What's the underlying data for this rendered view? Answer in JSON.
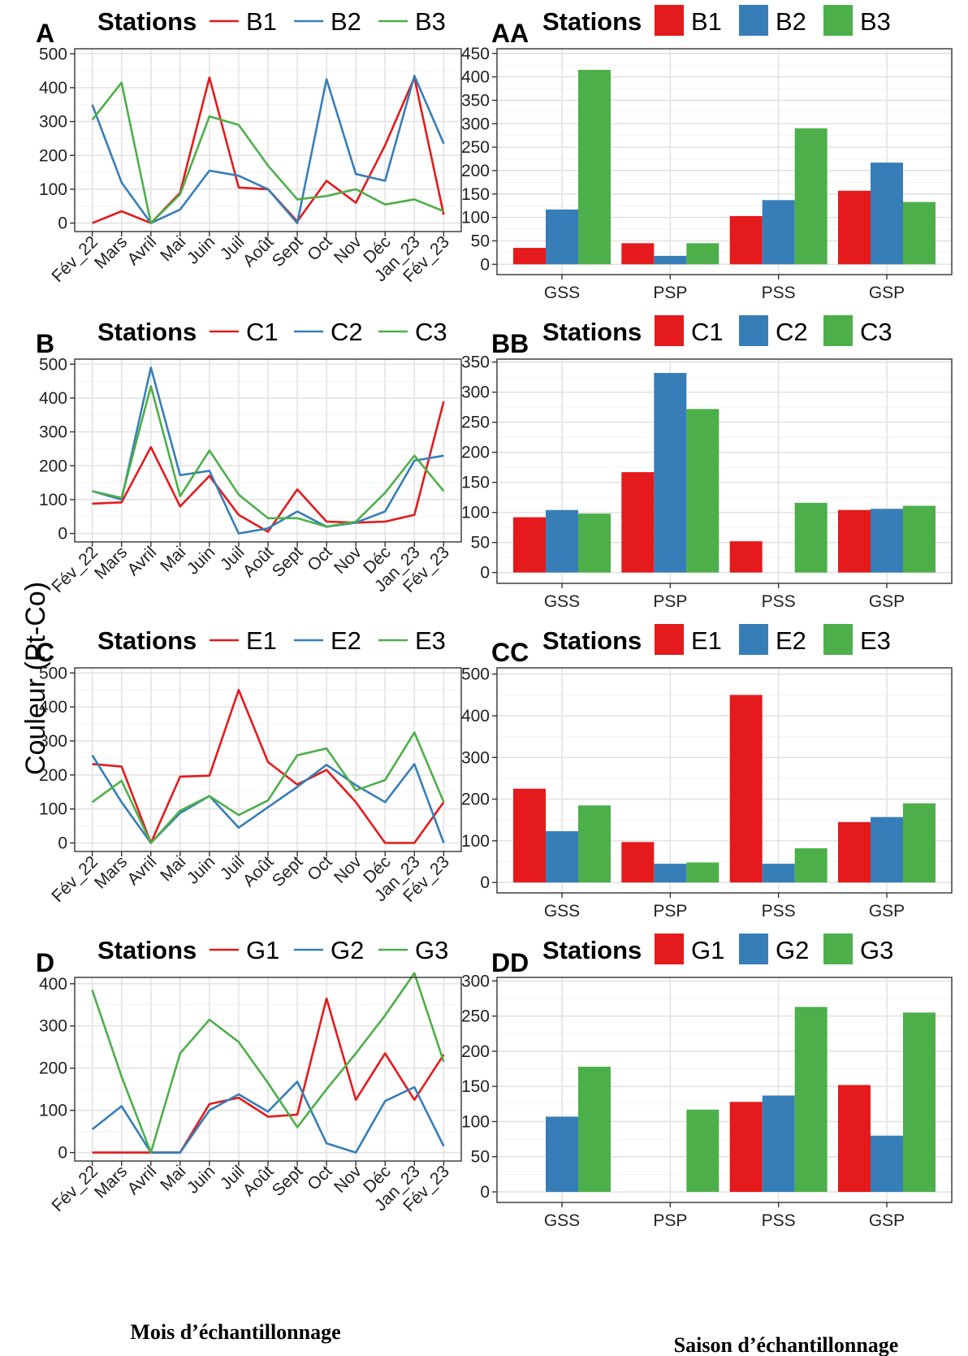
{
  "ylabel": "Couleur (Pt-Co)",
  "xlabel_left": "Mois d’échantillonnage",
  "xlabel_right": "Saison d’échantillonnage",
  "legend_title": "Stations",
  "colors": {
    "s1": "#E41A1C",
    "s2": "#377EB8",
    "s3": "#4DAF4A"
  },
  "chart_data": [
    {
      "label": "A",
      "type": "line",
      "categories": [
        "Fév_22",
        "Mars",
        "Avril",
        "Mai",
        "Juin",
        "Juil",
        "Août",
        "Sept",
        "Oct",
        "Nov",
        "Déc",
        "Jan_23",
        "Fév_23"
      ],
      "ylim": [
        -25,
        515
      ],
      "yticks": [
        0,
        100,
        200,
        300,
        400,
        500
      ],
      "series": [
        {
          "name": "B1",
          "values": [
            0,
            35,
            0,
            90,
            430,
            105,
            100,
            5,
            125,
            60,
            230,
            430,
            25
          ]
        },
        {
          "name": "B2",
          "values": [
            350,
            120,
            0,
            40,
            155,
            140,
            100,
            0,
            425,
            145,
            125,
            435,
            235
          ]
        },
        {
          "name": "B3",
          "values": [
            305,
            415,
            0,
            85,
            315,
            290,
            170,
            70,
            80,
            100,
            55,
            70,
            35
          ]
        }
      ]
    },
    {
      "label": "AA",
      "type": "bar",
      "categories": [
        "GSS",
        "PSP",
        "PSS",
        "GSP"
      ],
      "ylim": [
        -22,
        460
      ],
      "yticks": [
        0,
        50,
        100,
        150,
        200,
        250,
        300,
        350,
        400,
        450
      ],
      "series": [
        {
          "name": "B1",
          "values": [
            35,
            45,
            103,
            157
          ]
        },
        {
          "name": "B2",
          "values": [
            117,
            18,
            137,
            217
          ]
        },
        {
          "name": "B3",
          "values": [
            415,
            45,
            290,
            133
          ]
        }
      ]
    },
    {
      "label": "B",
      "type": "line",
      "categories": [
        "Fév_22",
        "Mars",
        "Avril",
        "Mai",
        "Juin",
        "Juil",
        "Août",
        "Sept",
        "Oct",
        "Nov",
        "Déc",
        "Jan_23",
        "Fév_23"
      ],
      "ylim": [
        -25,
        515
      ],
      "yticks": [
        0,
        100,
        200,
        300,
        400,
        500
      ],
      "series": [
        {
          "name": "C1",
          "values": [
            88,
            92,
            255,
            80,
            170,
            55,
            5,
            130,
            35,
            32,
            35,
            55,
            390
          ]
        },
        {
          "name": "C2",
          "values": [
            125,
            100,
            490,
            172,
            185,
            0,
            15,
            65,
            20,
            32,
            65,
            215,
            230
          ]
        },
        {
          "name": "C3",
          "values": [
            125,
            105,
            435,
            110,
            245,
            115,
            45,
            45,
            20,
            35,
            120,
            230,
            125
          ]
        }
      ]
    },
    {
      "label": "BB",
      "type": "bar",
      "categories": [
        "GSS",
        "PSP",
        "PSS",
        "GSP"
      ],
      "ylim": [
        -18,
        355
      ],
      "yticks": [
        0,
        50,
        100,
        150,
        200,
        250,
        300,
        350
      ],
      "series": [
        {
          "name": "C1",
          "values": [
            92,
            167,
            52,
            104
          ]
        },
        {
          "name": "C2",
          "values": [
            104,
            332,
            0,
            106
          ]
        },
        {
          "name": "C3",
          "values": [
            98,
            272,
            116,
            111
          ]
        }
      ]
    },
    {
      "label": "C",
      "type": "line",
      "categories": [
        "Fév_22",
        "Mars",
        "Avril",
        "Mai",
        "Juin",
        "Juil",
        "Août",
        "Sept",
        "Oct",
        "Nov",
        "Déc",
        "Jan_23",
        "Fév_23"
      ],
      "ylim": [
        -25,
        515
      ],
      "yticks": [
        0,
        100,
        200,
        300,
        400,
        500
      ],
      "series": [
        {
          "name": "E1",
          "values": [
            232,
            225,
            0,
            195,
            198,
            450,
            238,
            172,
            215,
            120,
            0,
            0,
            120
          ]
        },
        {
          "name": "E2",
          "values": [
            258,
            120,
            0,
            88,
            138,
            45,
            105,
            165,
            230,
            170,
            120,
            232,
            0
          ]
        },
        {
          "name": "E3",
          "values": [
            120,
            183,
            0,
            95,
            138,
            82,
            125,
            258,
            278,
            155,
            185,
            325,
            120
          ]
        }
      ]
    },
    {
      "label": "CC",
      "type": "bar",
      "categories": [
        "GSS",
        "PSP",
        "PSS",
        "GSP"
      ],
      "ylim": [
        -25,
        515
      ],
      "yticks": [
        0,
        100,
        200,
        300,
        400,
        500
      ],
      "series": [
        {
          "name": "E1",
          "values": [
            225,
            97,
            450,
            145
          ]
        },
        {
          "name": "E2",
          "values": [
            123,
            45,
            45,
            157
          ]
        },
        {
          "name": "E3",
          "values": [
            185,
            48,
            82,
            190
          ]
        }
      ]
    },
    {
      "label": "D",
      "type": "line",
      "categories": [
        "Fév_22",
        "Mars",
        "Avril",
        "Mai",
        "Juin",
        "Juil",
        "Août",
        "Sept",
        "Oct",
        "Nov",
        "Déc",
        "Jan_23",
        "Fév_23"
      ],
      "ylim": [
        -20,
        415
      ],
      "yticks": [
        0,
        100,
        200,
        300,
        400
      ],
      "series": [
        {
          "name": "G1",
          "values": [
            0,
            0,
            0,
            0,
            115,
            130,
            85,
            90,
            365,
            125,
            235,
            125,
            232
          ]
        },
        {
          "name": "G2",
          "values": [
            55,
            110,
            0,
            0,
            100,
            138,
            97,
            168,
            22,
            0,
            122,
            155,
            15
          ]
        },
        {
          "name": "G3",
          "values": [
            385,
            180,
            0,
            235,
            315,
            262,
            165,
            60,
            150,
            235,
            325,
            425,
            215
          ]
        }
      ]
    },
    {
      "label": "DD",
      "type": "bar",
      "categories": [
        "GSS",
        "PSP",
        "PSS",
        "GSP"
      ],
      "ylim": [
        -15,
        305
      ],
      "yticks": [
        0,
        50,
        100,
        150,
        200,
        250,
        300
      ],
      "series": [
        {
          "name": "G1",
          "values": [
            0,
            0,
            128,
            152
          ]
        },
        {
          "name": "G2",
          "values": [
            107,
            0,
            137,
            80
          ]
        },
        {
          "name": "G3",
          "values": [
            178,
            117,
            263,
            255
          ]
        }
      ]
    }
  ]
}
